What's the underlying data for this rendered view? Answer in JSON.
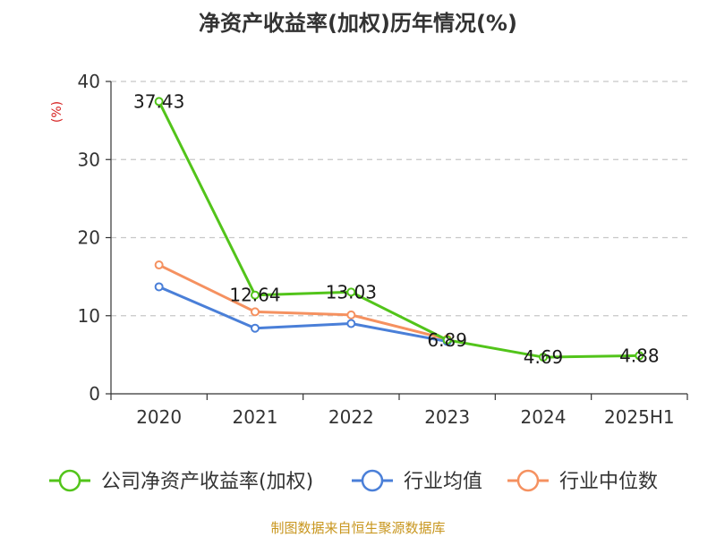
{
  "chart_data": {
    "type": "line",
    "title": "净资产收益率(加权)历年情况(%)",
    "ylabel": "(%)",
    "categories": [
      "2020",
      "2021",
      "2022",
      "2023",
      "2024",
      "2025H1"
    ],
    "ylim": [
      0,
      40
    ],
    "yticks": [
      0,
      10,
      20,
      30,
      40
    ],
    "grid": true,
    "legend_position": "bottom",
    "series": [
      {
        "name": "公司净资产收益率(加权)",
        "color": "#52c41a",
        "values": [
          37.43,
          12.64,
          13.03,
          6.89,
          4.69,
          4.88
        ],
        "labels": [
          "37.43",
          "12.64",
          "13.03",
          "6.89",
          "4.69",
          "4.88"
        ]
      },
      {
        "name": "行业均值",
        "color": "#4a7fd8",
        "values": [
          13.7,
          8.4,
          9.0,
          6.7,
          null,
          null
        ]
      },
      {
        "name": "行业中位数",
        "color": "#f59160",
        "values": [
          16.5,
          10.5,
          10.1,
          7.0,
          null,
          null
        ]
      }
    ]
  },
  "source": "制图数据来自恒生聚源数据库"
}
